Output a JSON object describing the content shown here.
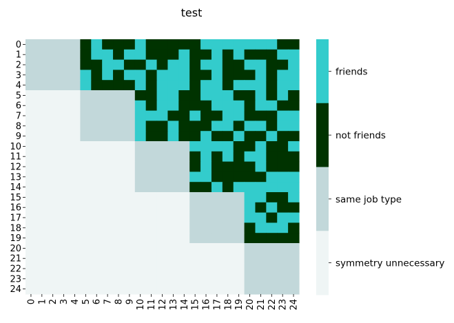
{
  "chart_data": {
    "type": "heatmap",
    "title": "test",
    "xlabel": "",
    "ylabel": "",
    "x_ticks": [
      "0",
      "1",
      "2",
      "3",
      "4",
      "5",
      "6",
      "7",
      "8",
      "9",
      "10",
      "11",
      "12",
      "13",
      "14",
      "15",
      "16",
      "17",
      "18",
      "19",
      "20",
      "21",
      "22",
      "23",
      "24"
    ],
    "y_ticks": [
      "0",
      "1",
      "2",
      "3",
      "4",
      "5",
      "6",
      "7",
      "8",
      "9",
      "10",
      "11",
      "12",
      "13",
      "14",
      "15",
      "16",
      "17",
      "18",
      "19",
      "20",
      "21",
      "22",
      "23",
      "24"
    ],
    "categories": [
      "symmetry unnecessary",
      "same job type",
      "not friends",
      "friends"
    ],
    "colors": {
      "symmetry unnecessary": "#eff5f5",
      "same job type": "#c2d8da",
      "not friends": "#003300",
      "friends": "#33cccc"
    },
    "matrix": [
      [
        1,
        1,
        1,
        1,
        1,
        2,
        3,
        2,
        2,
        2,
        3,
        2,
        2,
        2,
        2,
        2,
        3,
        3,
        3,
        3,
        3,
        3,
        3,
        2,
        2
      ],
      [
        1,
        1,
        1,
        1,
        1,
        2,
        3,
        3,
        2,
        3,
        3,
        2,
        2,
        2,
        3,
        2,
        2,
        3,
        2,
        3,
        2,
        2,
        2,
        3,
        3
      ],
      [
        1,
        1,
        1,
        1,
        1,
        2,
        2,
        3,
        3,
        2,
        2,
        3,
        2,
        3,
        3,
        2,
        3,
        3,
        2,
        2,
        3,
        3,
        2,
        2,
        3
      ],
      [
        1,
        1,
        1,
        1,
        1,
        3,
        2,
        3,
        2,
        3,
        3,
        2,
        3,
        3,
        3,
        2,
        2,
        3,
        2,
        2,
        2,
        3,
        2,
        3,
        3
      ],
      [
        1,
        1,
        1,
        1,
        1,
        3,
        2,
        2,
        2,
        2,
        3,
        2,
        3,
        3,
        3,
        2,
        3,
        3,
        2,
        3,
        3,
        3,
        2,
        3,
        3
      ],
      [
        0,
        0,
        0,
        0,
        0,
        1,
        1,
        1,
        1,
        1,
        2,
        2,
        3,
        3,
        2,
        2,
        3,
        3,
        3,
        2,
        2,
        3,
        2,
        3,
        2
      ],
      [
        0,
        0,
        0,
        0,
        0,
        1,
        1,
        1,
        1,
        1,
        3,
        2,
        3,
        3,
        2,
        2,
        2,
        3,
        3,
        3,
        2,
        3,
        3,
        2,
        2
      ],
      [
        0,
        0,
        0,
        0,
        0,
        1,
        1,
        1,
        1,
        1,
        3,
        3,
        3,
        2,
        2,
        3,
        2,
        2,
        3,
        3,
        2,
        2,
        2,
        3,
        3
      ],
      [
        0,
        0,
        0,
        0,
        0,
        1,
        1,
        1,
        1,
        1,
        3,
        2,
        2,
        3,
        2,
        2,
        2,
        3,
        3,
        2,
        3,
        3,
        2,
        3,
        3
      ],
      [
        0,
        0,
        0,
        0,
        0,
        1,
        1,
        1,
        1,
        1,
        3,
        2,
        2,
        3,
        2,
        2,
        3,
        2,
        2,
        3,
        2,
        2,
        3,
        2,
        2
      ],
      [
        0,
        0,
        0,
        0,
        0,
        0,
        0,
        0,
        0,
        0,
        1,
        1,
        1,
        1,
        1,
        3,
        3,
        3,
        3,
        2,
        2,
        3,
        2,
        2,
        3
      ],
      [
        0,
        0,
        0,
        0,
        0,
        0,
        0,
        0,
        0,
        0,
        1,
        1,
        1,
        1,
        1,
        2,
        3,
        2,
        3,
        2,
        3,
        3,
        2,
        2,
        2
      ],
      [
        0,
        0,
        0,
        0,
        0,
        0,
        0,
        0,
        0,
        0,
        1,
        1,
        1,
        1,
        1,
        2,
        3,
        2,
        2,
        2,
        2,
        3,
        2,
        2,
        2
      ],
      [
        0,
        0,
        0,
        0,
        0,
        0,
        0,
        0,
        0,
        0,
        1,
        1,
        1,
        1,
        1,
        3,
        3,
        2,
        2,
        2,
        2,
        2,
        3,
        3,
        3
      ],
      [
        0,
        0,
        0,
        0,
        0,
        0,
        0,
        0,
        0,
        0,
        1,
        1,
        1,
        1,
        1,
        2,
        2,
        3,
        2,
        3,
        3,
        3,
        3,
        3,
        3
      ],
      [
        0,
        0,
        0,
        0,
        0,
        0,
        0,
        0,
        0,
        0,
        0,
        0,
        0,
        0,
        0,
        1,
        1,
        1,
        1,
        1,
        3,
        3,
        2,
        2,
        3
      ],
      [
        0,
        0,
        0,
        0,
        0,
        0,
        0,
        0,
        0,
        0,
        0,
        0,
        0,
        0,
        0,
        1,
        1,
        1,
        1,
        1,
        3,
        2,
        3,
        2,
        2
      ],
      [
        0,
        0,
        0,
        0,
        0,
        0,
        0,
        0,
        0,
        0,
        0,
        0,
        0,
        0,
        0,
        1,
        1,
        1,
        1,
        1,
        3,
        3,
        2,
        3,
        3
      ],
      [
        0,
        0,
        0,
        0,
        0,
        0,
        0,
        0,
        0,
        0,
        0,
        0,
        0,
        0,
        0,
        1,
        1,
        1,
        1,
        1,
        2,
        3,
        3,
        3,
        2
      ],
      [
        0,
        0,
        0,
        0,
        0,
        0,
        0,
        0,
        0,
        0,
        0,
        0,
        0,
        0,
        0,
        1,
        1,
        1,
        1,
        1,
        2,
        2,
        2,
        2,
        2
      ],
      [
        0,
        0,
        0,
        0,
        0,
        0,
        0,
        0,
        0,
        0,
        0,
        0,
        0,
        0,
        0,
        0,
        0,
        0,
        0,
        0,
        1,
        1,
        1,
        1,
        1
      ],
      [
        0,
        0,
        0,
        0,
        0,
        0,
        0,
        0,
        0,
        0,
        0,
        0,
        0,
        0,
        0,
        0,
        0,
        0,
        0,
        0,
        1,
        1,
        1,
        1,
        1
      ],
      [
        0,
        0,
        0,
        0,
        0,
        0,
        0,
        0,
        0,
        0,
        0,
        0,
        0,
        0,
        0,
        0,
        0,
        0,
        0,
        0,
        1,
        1,
        1,
        1,
        1
      ],
      [
        0,
        0,
        0,
        0,
        0,
        0,
        0,
        0,
        0,
        0,
        0,
        0,
        0,
        0,
        0,
        0,
        0,
        0,
        0,
        0,
        1,
        1,
        1,
        1,
        1
      ],
      [
        0,
        0,
        0,
        0,
        0,
        0,
        0,
        0,
        0,
        0,
        0,
        0,
        0,
        0,
        0,
        0,
        0,
        0,
        0,
        0,
        1,
        1,
        1,
        1,
        1
      ]
    ],
    "colorbar_ticks": [
      "friends",
      "not friends",
      "same job type",
      "symmetry unnecessary"
    ],
    "grid": false,
    "legend": "colorbar-right"
  }
}
